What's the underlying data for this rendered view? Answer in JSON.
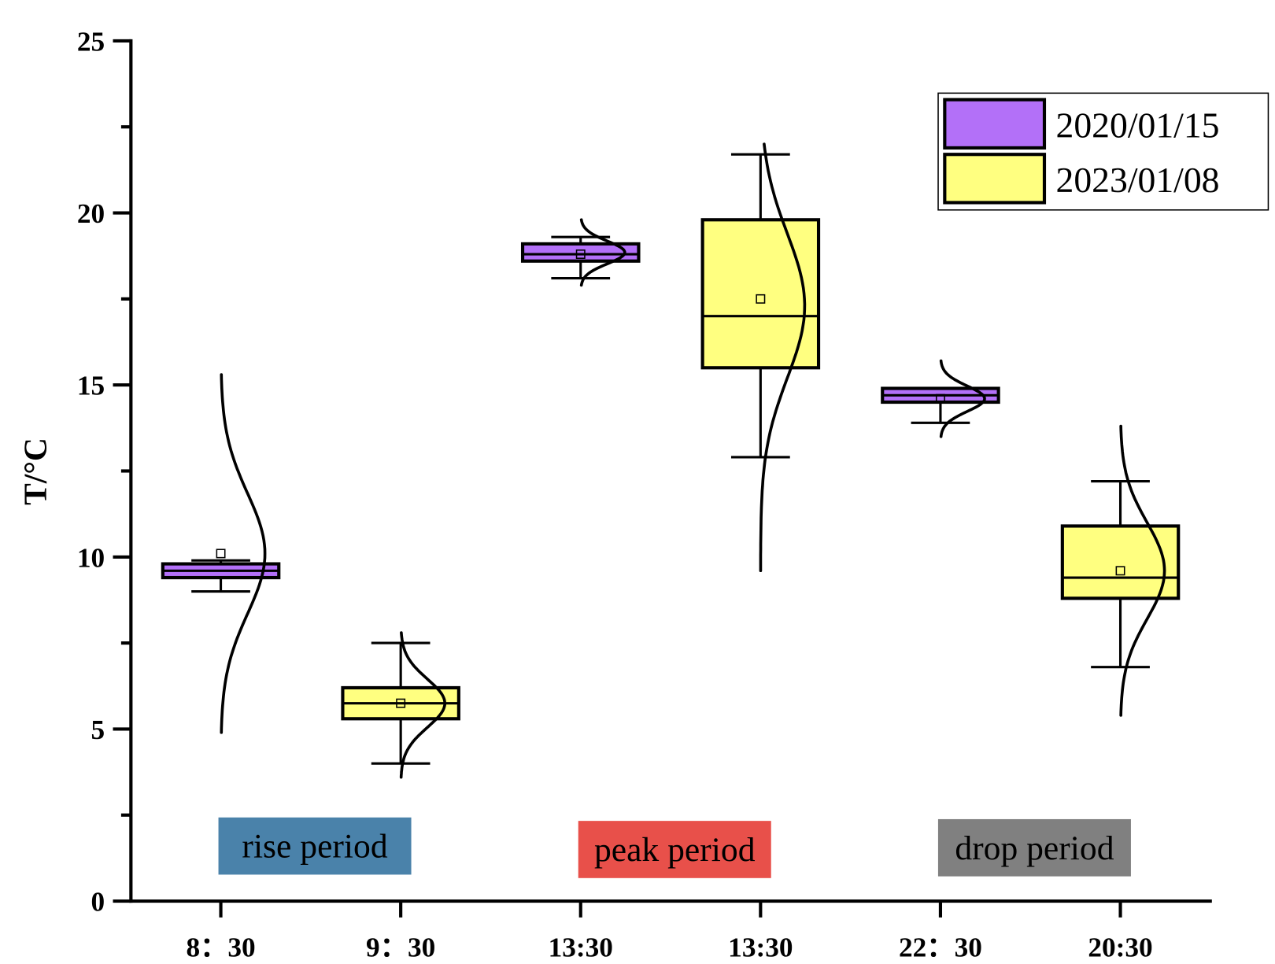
{
  "chart_data": {
    "type": "box",
    "title": "",
    "xlabel": "",
    "ylabel": "T/°C",
    "ylim": [
      0,
      25
    ],
    "yticks": [
      "0",
      "5",
      "10",
      "15",
      "20",
      "25"
    ],
    "categories": [
      "8：30",
      "9：30",
      "13:30",
      "13:30",
      "22：30",
      "20:30"
    ],
    "legend": {
      "position": "top-right",
      "entries": [
        {
          "name": "2020/01/15",
          "color": "#b370f8"
        },
        {
          "name": "2023/01/08",
          "color": "#ffff80"
        }
      ]
    },
    "boxes": [
      {
        "series": "2020/01/15",
        "q1": 9.4,
        "median": 9.6,
        "q3": 9.8,
        "mean": 10.1,
        "whisker_low": 9.0,
        "whisker_high": 9.9,
        "curve": {
          "mean": 10.1,
          "sd": 1.75,
          "min": 4.9,
          "max": 15.3
        }
      },
      {
        "series": "2023/01/08",
        "q1": 5.3,
        "median": 5.75,
        "q3": 6.2,
        "mean": 5.75,
        "whisker_low": 4.0,
        "whisker_high": 7.5,
        "curve": {
          "mean": 5.75,
          "sd": 0.7,
          "min": 3.6,
          "max": 7.8
        }
      },
      {
        "series": "2020/01/15",
        "q1": 18.6,
        "median": 18.8,
        "q3": 19.1,
        "mean": 18.8,
        "whisker_low": 18.1,
        "whisker_high": 19.3,
        "curve": {
          "mean": 18.85,
          "sd": 0.33,
          "min": 17.9,
          "max": 19.8
        }
      },
      {
        "series": "2023/01/08",
        "q1": 15.5,
        "median": 17.0,
        "q3": 19.8,
        "mean": 17.5,
        "whisker_low": 12.9,
        "whisker_high": 21.7,
        "curve": {
          "mean": 17.3,
          "sd": 2.1,
          "min": 9.6,
          "max": 22.0
        }
      },
      {
        "series": "2020/01/15",
        "q1": 14.5,
        "median": 14.7,
        "q3": 14.9,
        "mean": 14.6,
        "whisker_low": 13.9,
        "whisker_high": 14.9,
        "curve": {
          "mean": 14.6,
          "sd": 0.37,
          "min": 13.5,
          "max": 15.7
        }
      },
      {
        "series": "2023/01/08",
        "q1": 8.8,
        "median": 9.4,
        "q3": 10.9,
        "mean": 9.6,
        "whisker_low": 6.8,
        "whisker_high": 12.2,
        "curve": {
          "mean": 9.6,
          "sd": 1.4,
          "min": 5.4,
          "max": 13.8
        }
      }
    ],
    "annotations": [
      {
        "text": "rise period",
        "color": "#4a82aa",
        "y": 1.6,
        "x_from": 0,
        "x_to": 1
      },
      {
        "text": "peak period",
        "color": "#e8504a",
        "y": 1.5,
        "x_from": 2,
        "x_to": 3
      },
      {
        "text": "drop period",
        "color": "#808080",
        "y": 1.55,
        "x_from": 4,
        "x_to": 5
      }
    ]
  }
}
